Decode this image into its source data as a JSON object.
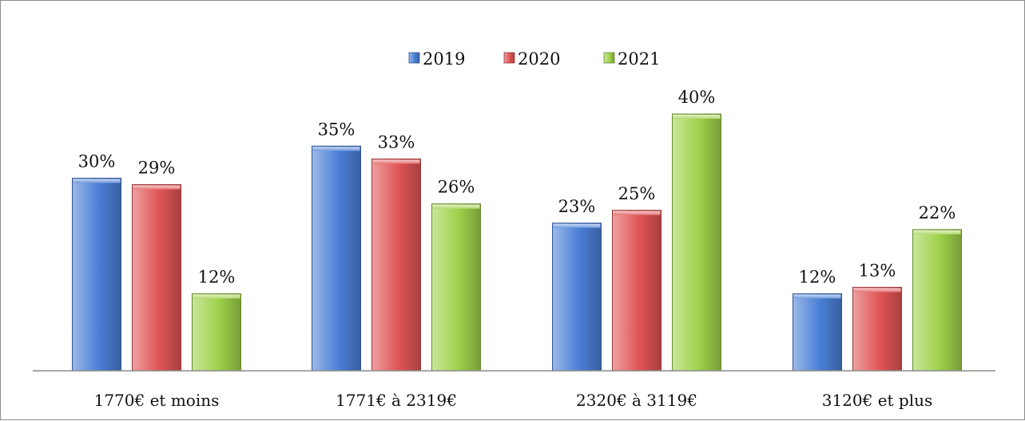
{
  "chart_data": {
    "type": "bar",
    "categories": [
      "1770€ et moins",
      "1771€ à 2319€",
      "2320€ à 3119€",
      "3120€ et plus"
    ],
    "series": [
      {
        "name": "2019",
        "values": [
          30,
          35,
          23,
          12
        ],
        "labels": [
          "30%",
          "35%",
          "23%",
          "12%"
        ],
        "color": "#4a7fd6"
      },
      {
        "name": "2020",
        "values": [
          29,
          33,
          25,
          13
        ],
        "labels": [
          "29%",
          "33%",
          "25%",
          "13%"
        ],
        "color": "#e05454"
      },
      {
        "name": "2021",
        "values": [
          12,
          26,
          40,
          22
        ],
        "labels": [
          "12%",
          "26%",
          "40%",
          "22%"
        ],
        "color": "#9ed14a"
      }
    ],
    "legend_position": "top",
    "grid": false,
    "ylim": [
      0,
      40
    ]
  }
}
